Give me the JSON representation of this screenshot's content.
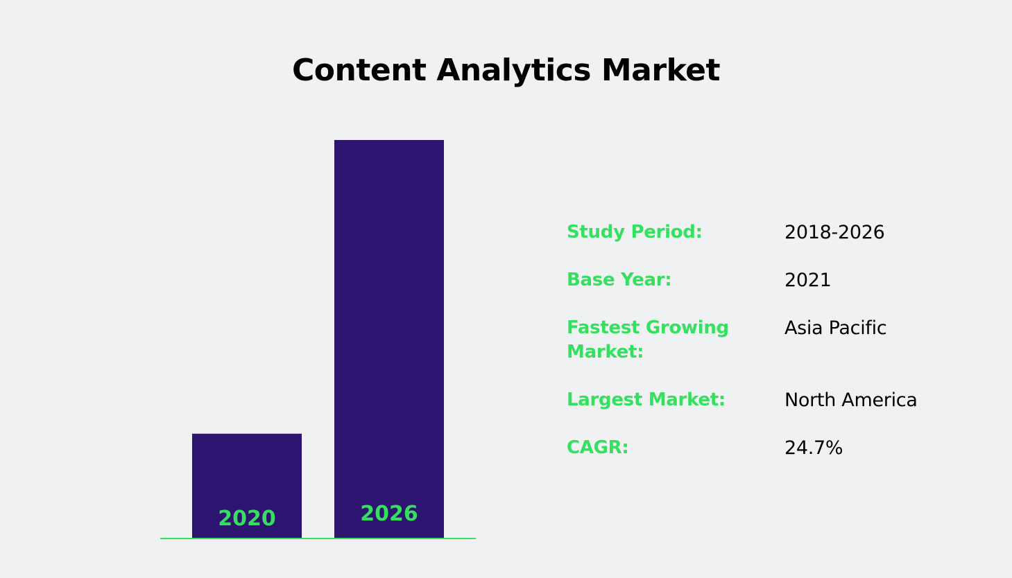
{
  "colors": {
    "background": "#f0f1f3",
    "bar": "#2d1470",
    "accent": "#35e05f",
    "text": "#000000"
  },
  "title": "Content Analytics Market",
  "chart_data": {
    "type": "bar",
    "categories": [
      "2020",
      "2026"
    ],
    "values": [
      26.3,
      100
    ],
    "grid": false,
    "legend": "none",
    "ylim": [
      0,
      100
    ]
  },
  "stats": [
    {
      "label": "Study Period:",
      "value": "2018-2026"
    },
    {
      "label": "Base Year:",
      "value": "2021"
    },
    {
      "label": "Fastest Growing Market:",
      "value": "Asia Pacific"
    },
    {
      "label": "Largest Market:",
      "value": "North America"
    },
    {
      "label": "CAGR:",
      "value": "24.7%"
    }
  ]
}
